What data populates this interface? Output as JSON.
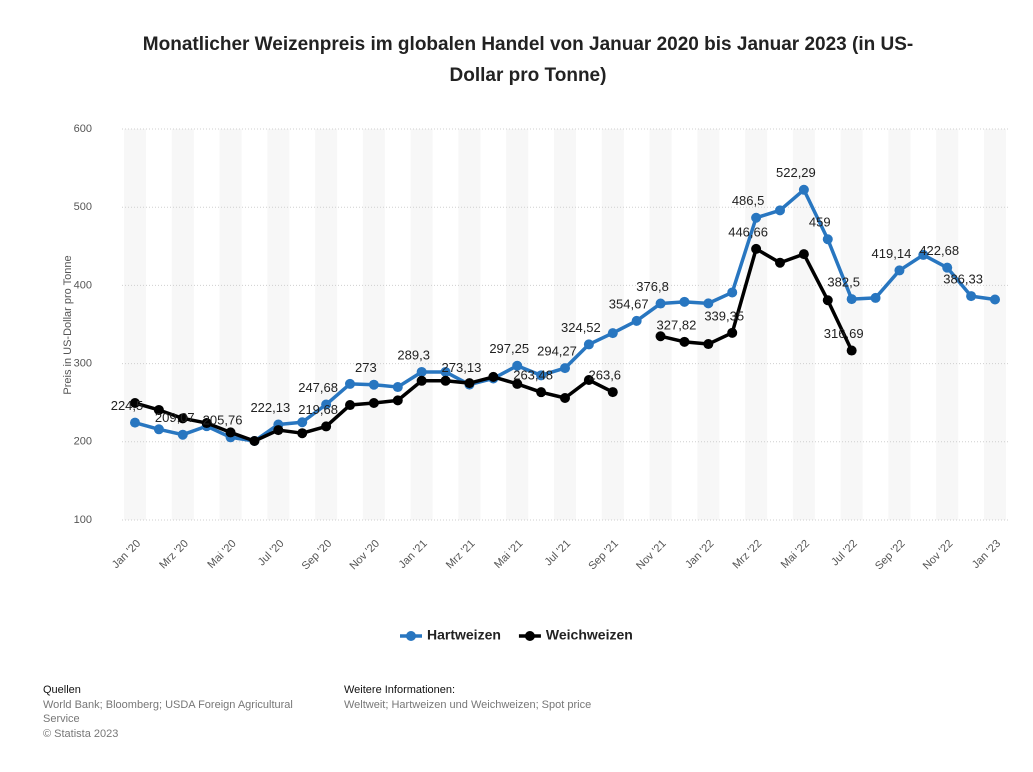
{
  "chart_data": {
    "type": "line",
    "title": [
      "Monatlicher Weizenpreis im globalen Handel von Januar 2020 bis Januar 2023 (in US-",
      "Dollar pro Tonne)"
    ],
    "y_label": "Preis in US-Dollar pro Tonne",
    "categories": [
      "Jan '20",
      null,
      "Mrz '20",
      null,
      "Mai '20",
      null,
      "Jul '20",
      null,
      "Sep '20",
      null,
      "Nov '20",
      null,
      "Jan '21",
      null,
      "Mrz '21",
      null,
      "Mai '21",
      null,
      "Jul '21",
      null,
      "Sep '21",
      null,
      "Nov '21",
      null,
      "Jan '22",
      null,
      "Mrz '22",
      null,
      "Mai '22",
      null,
      "Jul '22",
      null,
      "Sep '22",
      null,
      "Nov '22",
      null,
      "Jan '23"
    ],
    "series": [
      {
        "name": "Hartweizen",
        "color": "#2876c0",
        "values": [
          224.5,
          216,
          209.07,
          220,
          205.76,
          201,
          222.13,
          225,
          247.68,
          274,
          273,
          270,
          289.3,
          289.3,
          273.13,
          281,
          297.25,
          285,
          294.27,
          324.52,
          339,
          354.67,
          376.8,
          379,
          377,
          391,
          486.5,
          496,
          522.29,
          459,
          382.5,
          384,
          419.14,
          439,
          422.68,
          386.33,
          382
        ],
        "value_labels": [
          "224,5",
          null,
          "209,07",
          null,
          "205,76",
          null,
          "222,13",
          null,
          "247,68",
          null,
          "273",
          null,
          "289,3",
          null,
          "273,13",
          null,
          "297,25",
          null,
          "294,27",
          "324,52",
          null,
          "354,67",
          "376,8",
          null,
          null,
          null,
          "486,5",
          null,
          "522,29",
          "459",
          "382,5",
          null,
          "419,14",
          null,
          "422,68",
          "386,33",
          null
        ]
      },
      {
        "name": "Weichweizen",
        "color": "#000000",
        "values": [
          249.6,
          240.7,
          230,
          224,
          212,
          201,
          215,
          211,
          219.68,
          247,
          249.6,
          253,
          278,
          278,
          275,
          283,
          274,
          263.48,
          256,
          279,
          263.6,
          null,
          335,
          327.82,
          325,
          339.35,
          446.66,
          429,
          440,
          381,
          316.69,
          null,
          null,
          null,
          null,
          null,
          null
        ],
        "value_labels": [
          null,
          null,
          null,
          null,
          null,
          null,
          null,
          null,
          "219,68",
          null,
          null,
          null,
          null,
          null,
          null,
          null,
          null,
          "263,48",
          null,
          null,
          "263,6",
          null,
          null,
          "327,82",
          null,
          "339,35",
          "446,66",
          null,
          null,
          null,
          "316,69",
          null,
          null,
          null,
          null,
          null,
          null
        ]
      }
    ],
    "ylim": [
      100,
      600
    ],
    "yticks": [
      100,
      200,
      300,
      400,
      500,
      600
    ],
    "grid": true,
    "legend": "bottom"
  },
  "footer": {
    "sources_heading": "Quellen",
    "sources": [
      "World Bank; Bloomberg; USDA Foreign Agricultural",
      "Service"
    ],
    "copyright": "© Statista 2023",
    "info_heading": "Weitere Informationen:",
    "info": "Weltweit; Hartweizen und Weichweizen; Spot price"
  }
}
